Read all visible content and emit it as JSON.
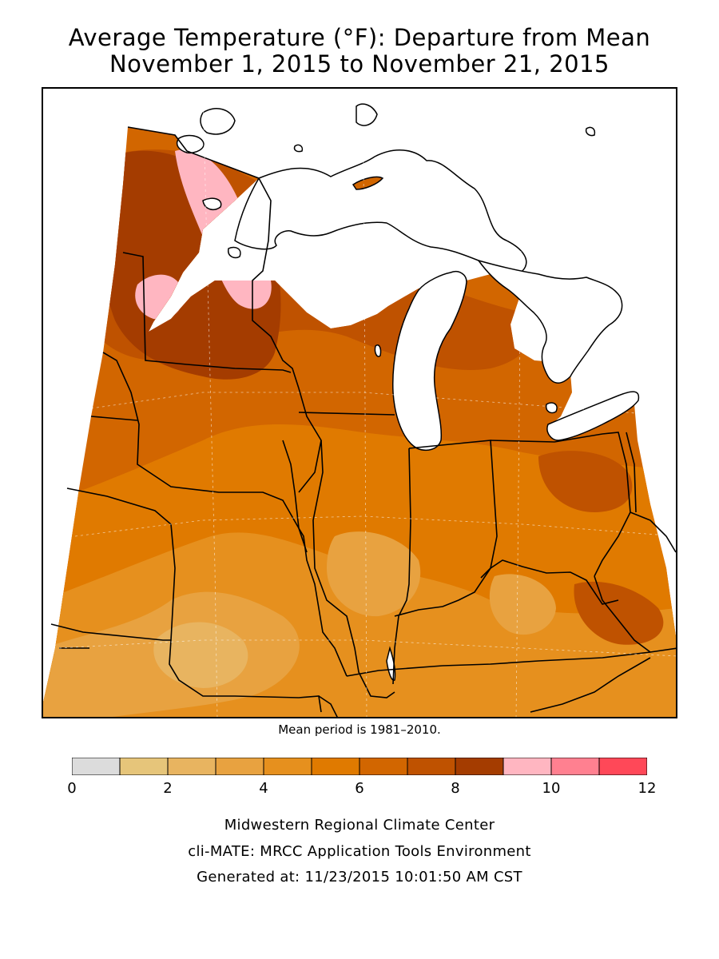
{
  "title": {
    "line1": "Average Temperature (°F): Departure from Mean",
    "line2": "November 1, 2015 to November 21, 2015"
  },
  "mean_note": "Mean period is 1981–2010.",
  "legend": {
    "ticks": [
      "0",
      "2",
      "4",
      "6",
      "8",
      "10",
      "12"
    ],
    "bins": [
      {
        "from": 0,
        "to": 1,
        "color": "#dcdcdc"
      },
      {
        "from": 1,
        "to": 2,
        "color": "#e6c57a"
      },
      {
        "from": 2,
        "to": 3,
        "color": "#e8b460"
      },
      {
        "from": 3,
        "to": 4,
        "color": "#e8a240"
      },
      {
        "from": 4,
        "to": 5,
        "color": "#e6901e"
      },
      {
        "from": 5,
        "to": 6,
        "color": "#e07a00"
      },
      {
        "from": 6,
        "to": 7,
        "color": "#d26600"
      },
      {
        "from": 7,
        "to": 8,
        "color": "#bf5200"
      },
      {
        "from": 8,
        "to": 9,
        "color": "#a43c00"
      },
      {
        "from": 9,
        "to": 10,
        "color": "#ffb6c1"
      },
      {
        "from": 10,
        "to": 11,
        "color": "#ff8090"
      },
      {
        "from": 11,
        "to": 12,
        "color": "#ff4858"
      }
    ]
  },
  "map": {
    "land_color": "#d26600",
    "water_color": "#ffffff",
    "border_color": "#000000"
  },
  "footer": {
    "line1": "Midwestern Regional Climate Center",
    "line2": "cli-MATE: MRCC Application Tools Environment",
    "line3": "Generated at: 11/23/2015 10:01:50 AM CST"
  }
}
